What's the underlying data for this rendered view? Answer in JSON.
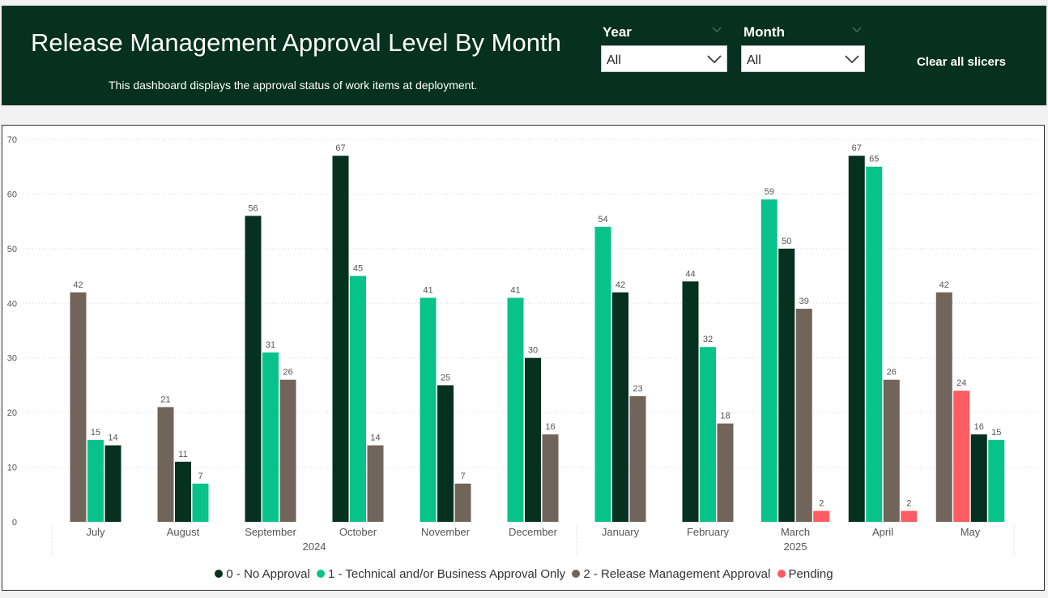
{
  "header": {
    "title": "Release Management Approval Level By Month",
    "subtitle": "This dashboard displays the approval status of work items at deployment.",
    "clear_label": "Clear all slicers"
  },
  "slicers": {
    "year": {
      "label": "Year",
      "value": "All"
    },
    "month": {
      "label": "Month",
      "value": "All"
    }
  },
  "legend": [
    {
      "label": "0 - No Approval",
      "color": "#06301f"
    },
    {
      "label": "1 - Technical and/or Business Approval Only",
      "color": "#07c389"
    },
    {
      "label": "2 - Release Management Approval",
      "color": "#71645b"
    },
    {
      "label": "Pending",
      "color": "#fd5c63"
    }
  ],
  "chart_data": {
    "type": "bar",
    "ylim": [
      0,
      70
    ],
    "yticks": [
      0,
      10,
      20,
      30,
      40,
      50,
      60,
      70
    ],
    "grid": true,
    "legend_position": "bottom",
    "years": [
      {
        "label": "2024",
        "months": [
          "July",
          "August",
          "September",
          "October",
          "November",
          "December"
        ]
      },
      {
        "label": "2025",
        "months": [
          "January",
          "February",
          "March",
          "April",
          "May"
        ]
      }
    ],
    "categories": [
      "July",
      "August",
      "September",
      "October",
      "November",
      "December",
      "January",
      "February",
      "March",
      "April",
      "May"
    ],
    "groups": [
      {
        "month": "July",
        "bars": [
          {
            "series": "2 - Release Management Approval",
            "value": 42
          },
          {
            "series": "1 - Technical and/or Business Approval Only",
            "value": 15
          },
          {
            "series": "0 - No Approval",
            "value": 14
          }
        ]
      },
      {
        "month": "August",
        "bars": [
          {
            "series": "2 - Release Management Approval",
            "value": 21
          },
          {
            "series": "0 - No Approval",
            "value": 11
          },
          {
            "series": "1 - Technical and/or Business Approval Only",
            "value": 7
          }
        ]
      },
      {
        "month": "September",
        "bars": [
          {
            "series": "0 - No Approval",
            "value": 56
          },
          {
            "series": "1 - Technical and/or Business Approval Only",
            "value": 31
          },
          {
            "series": "2 - Release Management Approval",
            "value": 26
          }
        ]
      },
      {
        "month": "October",
        "bars": [
          {
            "series": "0 - No Approval",
            "value": 67
          },
          {
            "series": "1 - Technical and/or Business Approval Only",
            "value": 45
          },
          {
            "series": "2 - Release Management Approval",
            "value": 14
          }
        ]
      },
      {
        "month": "November",
        "bars": [
          {
            "series": "1 - Technical and/or Business Approval Only",
            "value": 41
          },
          {
            "series": "0 - No Approval",
            "value": 25
          },
          {
            "series": "2 - Release Management Approval",
            "value": 7
          }
        ]
      },
      {
        "month": "December",
        "bars": [
          {
            "series": "1 - Technical and/or Business Approval Only",
            "value": 41
          },
          {
            "series": "0 - No Approval",
            "value": 30
          },
          {
            "series": "2 - Release Management Approval",
            "value": 16
          }
        ]
      },
      {
        "month": "January",
        "bars": [
          {
            "series": "1 - Technical and/or Business Approval Only",
            "value": 54
          },
          {
            "series": "0 - No Approval",
            "value": 42
          },
          {
            "series": "2 - Release Management Approval",
            "value": 23
          }
        ]
      },
      {
        "month": "February",
        "bars": [
          {
            "series": "0 - No Approval",
            "value": 44
          },
          {
            "series": "1 - Technical and/or Business Approval Only",
            "value": 32
          },
          {
            "series": "2 - Release Management Approval",
            "value": 18
          }
        ]
      },
      {
        "month": "March",
        "bars": [
          {
            "series": "1 - Technical and/or Business Approval Only",
            "value": 59
          },
          {
            "series": "0 - No Approval",
            "value": 50
          },
          {
            "series": "2 - Release Management Approval",
            "value": 39
          },
          {
            "series": "Pending",
            "value": 2
          }
        ]
      },
      {
        "month": "April",
        "bars": [
          {
            "series": "0 - No Approval",
            "value": 67
          },
          {
            "series": "1 - Technical and/or Business Approval Only",
            "value": 65
          },
          {
            "series": "2 - Release Management Approval",
            "value": 26
          },
          {
            "series": "Pending",
            "value": 2
          }
        ]
      },
      {
        "month": "May",
        "bars": [
          {
            "series": "2 - Release Management Approval",
            "value": 42
          },
          {
            "series": "Pending",
            "value": 24
          },
          {
            "series": "0 - No Approval",
            "value": 16
          },
          {
            "series": "1 - Technical and/or Business Approval Only",
            "value": 15
          }
        ]
      }
    ]
  }
}
